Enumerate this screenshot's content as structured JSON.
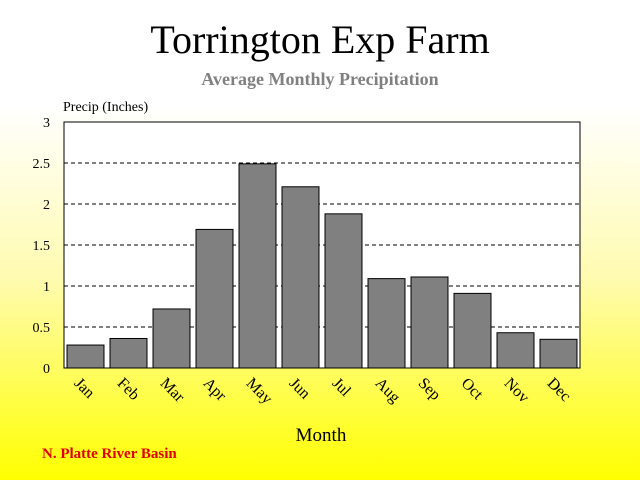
{
  "title": "Torrington Exp Farm",
  "subtitle": "Average Monthly Precipitation",
  "footer": "N. Platte River Basin",
  "colors": {
    "bar_fill": "#808080",
    "bar_edge": "#000000",
    "plot_bg": "#ffffff",
    "footer_text": "#e00000",
    "subtitle_text": "#808080"
  },
  "chart_data": {
    "type": "bar",
    "title": "Torrington Exp Farm",
    "subtitle": "Average Monthly Precipitation",
    "xlabel": "Month",
    "ylabel": "Precip (Inches)",
    "categories": [
      "Jan",
      "Feb",
      "Mar",
      "Apr",
      "May",
      "Jun",
      "Jul",
      "Aug",
      "Sep",
      "Oct",
      "Nov",
      "Dec"
    ],
    "values": [
      0.28,
      0.36,
      0.72,
      1.69,
      2.49,
      2.21,
      1.88,
      1.09,
      1.11,
      0.91,
      0.43,
      0.35
    ],
    "ylim": [
      0,
      3
    ],
    "yticks": [
      "0",
      "0.5",
      "1",
      "1.5",
      "2",
      "2.5",
      "3"
    ],
    "grid": true
  }
}
